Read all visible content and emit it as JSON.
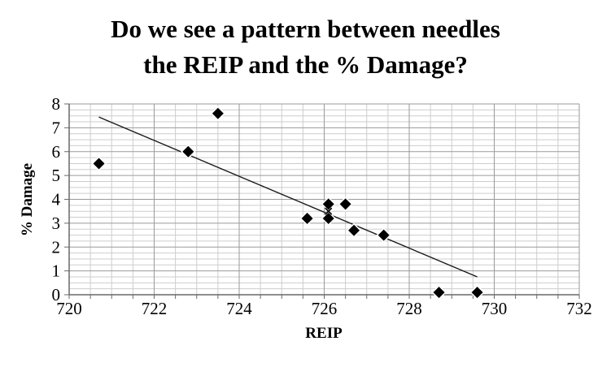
{
  "title": {
    "line1": "Do we see a pattern between needles",
    "line2": "the REIP and the % Damage?"
  },
  "chart_data": {
    "type": "scatter",
    "title": "Do we see a pattern between needles the REIP and the % Damage?",
    "xlabel": "REIP",
    "ylabel": "% Damage",
    "xlim": [
      720,
      732
    ],
    "ylim": [
      0,
      8
    ],
    "x_ticks": [
      720,
      722,
      724,
      726,
      728,
      730,
      732
    ],
    "y_ticks": [
      0,
      1,
      2,
      3,
      4,
      5,
      6,
      7,
      8
    ],
    "x_major_step": 2,
    "x_minor_step": 0.5,
    "y_major_step": 1,
    "y_minor_step": 0.25,
    "grid": true,
    "legend": "none",
    "series": [
      {
        "name": "damage-points",
        "marker": "diamond",
        "points": [
          [
            720.7,
            5.5
          ],
          [
            722.8,
            6.0
          ],
          [
            723.5,
            7.6
          ],
          [
            725.6,
            3.2
          ],
          [
            726.1,
            3.8
          ],
          [
            726.1,
            3.2
          ],
          [
            726.5,
            3.8
          ],
          [
            726.7,
            2.7
          ],
          [
            727.4,
            2.5
          ],
          [
            728.7,
            0.1
          ],
          [
            729.6,
            0.1
          ]
        ]
      },
      {
        "name": "occluded-point",
        "marker": "x",
        "points": [
          [
            726.1,
            3.5
          ]
        ]
      }
    ],
    "trendline": {
      "x1": 720.7,
      "y1": 7.45,
      "x2": 729.6,
      "y2": 0.75
    },
    "colors": {
      "marker": "#000000",
      "marker_halo": "#ffffff",
      "trend": "#1a1a1a",
      "grid_major": "#9a9a9a",
      "grid_minor": "#cdcdcd",
      "axis": "#696969",
      "text": "#000000",
      "background": "#ffffff"
    }
  }
}
